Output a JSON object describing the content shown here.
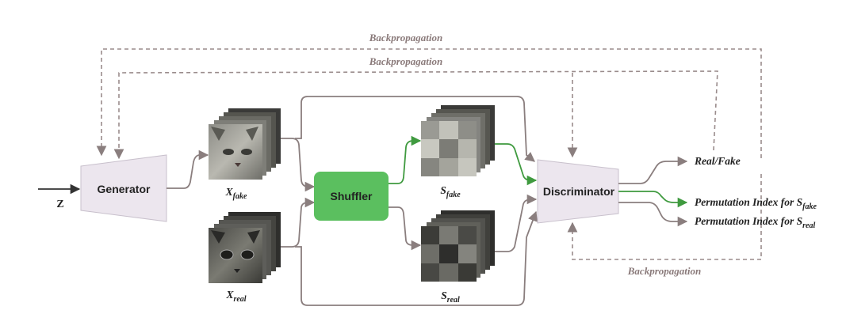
{
  "nodes": {
    "z": "Z",
    "generator": "Generator",
    "shuffler": "Shuffler",
    "discriminator": "Discriminator"
  },
  "images": {
    "x_fake": {
      "main": "X",
      "sub": "fake"
    },
    "x_real": {
      "main": "X",
      "sub": "real"
    },
    "s_fake": {
      "main": "S",
      "sub": "fake"
    },
    "s_real": {
      "main": "S",
      "sub": "real"
    }
  },
  "outputs": {
    "real_fake": "Real/Fake",
    "perm_fake": {
      "main": "Permutation Index for S",
      "sub": "fake"
    },
    "perm_real": {
      "main": "Permutation Index for S",
      "sub": "real"
    }
  },
  "backprop": {
    "top1": "Backpropagation",
    "top2": "Backpropagation",
    "bottom": "Backpropagation"
  },
  "colors": {
    "solid_arrow": "#8a7e7e",
    "green_arrow": "#3f9a3f",
    "dashed": "#9a8c8c",
    "shuffler_fill": "#5bbf5f",
    "trapezoid_fill": "#ece6ee"
  }
}
